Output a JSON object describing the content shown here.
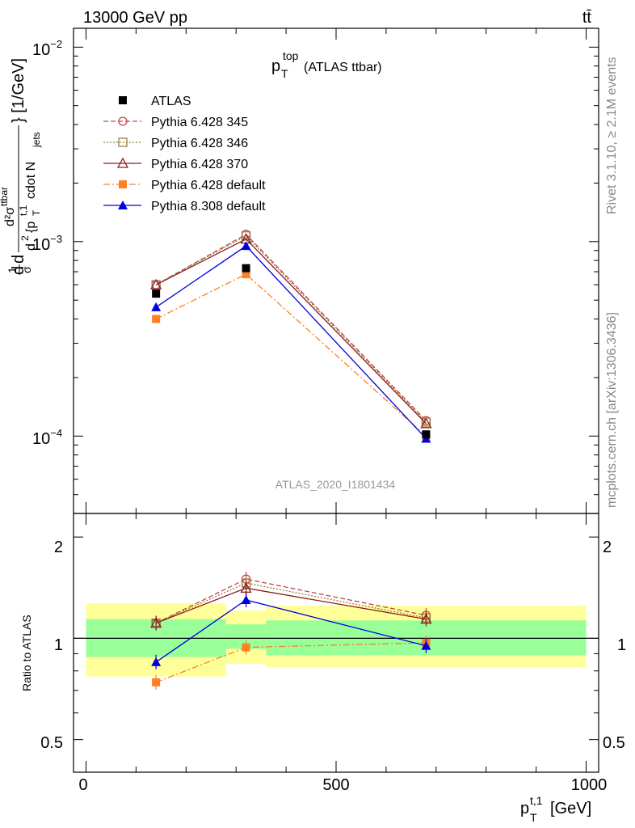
{
  "header": {
    "left": "13000 GeV pp",
    "right": "tt̄"
  },
  "side_labels": {
    "rivet": "Rivet 3.1.10, ≥ 2.1M events",
    "site": "mcplots.cern.ch [arXiv:1306.3436]"
  },
  "main_plot": {
    "title_main": "p",
    "title_sub": "T",
    "title_sup": "top",
    "title_suffix": "(ATLAS ttbar)",
    "analysis_tag": "ATLAS_2020_I1801434",
    "ylabel": "d1dσd²σᵗᵗ/d²{p_T^{t,1} cdot N_jets} [1/GeV]",
    "ylabel_parts": {
      "p1": "d",
      "p2": "1",
      "p3": "σ",
      "p4": "d",
      "p5": "d²σ",
      "p6": "ttbar",
      "p7": "d",
      "p8": "2",
      "p9": "{p",
      "p10": "T",
      "p11": "t,1",
      "p12": "cdot N",
      "p13": "jets",
      "p14": "} [1/GeV]"
    },
    "y_ticks": {
      "t1e2": {
        "base": "10",
        "exp": "−2"
      },
      "t1e3": {
        "base": "10",
        "exp": "−3"
      },
      "t1e4": {
        "base": "10",
        "exp": "−4"
      }
    }
  },
  "ratio_plot": {
    "ylabel": "Ratio to ATLAS",
    "y_ticks": [
      "2",
      "1",
      "0.5"
    ]
  },
  "x_axis": {
    "ticks": [
      "0",
      "500",
      "1000"
    ],
    "label_main": "p",
    "label_sub": "T",
    "label_sup": "t,1",
    "label_unit": "[GeV]"
  },
  "legend": [
    {
      "name": "ATLAS",
      "color": "#000000",
      "marker": "square-filled",
      "dash": "none"
    },
    {
      "name": "Pythia 6.428 345",
      "color": "#c0464e",
      "marker": "circle-open",
      "dash": "6,3"
    },
    {
      "name": "Pythia 6.428 346",
      "color": "#9a7b3d",
      "marker": "square-open",
      "dash": "2,2"
    },
    {
      "name": "Pythia 6.428 370",
      "color": "#8b1c1c",
      "marker": "triangle-open",
      "dash": "none"
    },
    {
      "name": "Pythia 6.428 default",
      "color": "#ff7f24",
      "marker": "square-filled",
      "dash": "8,3,2,3"
    },
    {
      "name": "Pythia 8.308 default",
      "color": "#0000dd",
      "marker": "triangle-filled",
      "dash": "none"
    }
  ],
  "chart_data": {
    "type": "line",
    "x": [
      140,
      320,
      680
    ],
    "x_bins": [
      [
        0,
        280
      ],
      [
        280,
        360
      ],
      [
        360,
        1000
      ]
    ],
    "xlim": [
      -25,
      1025
    ],
    "main_ylim": [
      4e-05,
      0.0125
    ],
    "main_yscale": "log",
    "ratio_ylim": [
      0.4,
      2.35
    ],
    "ratio_yscale": "log",
    "data": {
      "name": "ATLAS",
      "values": [
        0.00054,
        0.00073,
        0.000102
      ]
    },
    "data_uncertainty_ratio": {
      "inner": [
        [
          0.88,
          1.14
        ],
        [
          0.93,
          1.1
        ],
        [
          0.89,
          1.13
        ]
      ],
      "outer": [
        [
          0.77,
          1.27
        ],
        [
          0.84,
          1.21
        ],
        [
          0.82,
          1.25
        ]
      ]
    },
    "series": [
      {
        "name": "Pythia 6.428 345",
        "values": [
          0.0006,
          0.00109,
          0.00012
        ],
        "ratio": [
          1.11,
          1.5,
          1.17
        ]
      },
      {
        "name": "Pythia 6.428 346",
        "values": [
          0.0006,
          0.00107,
          0.000118
        ],
        "ratio": [
          1.11,
          1.46,
          1.15
        ]
      },
      {
        "name": "Pythia 6.428 370",
        "values": [
          0.0006,
          0.00103,
          0.000116
        ],
        "ratio": [
          1.11,
          1.41,
          1.14
        ]
      },
      {
        "name": "Pythia 6.428 default",
        "values": [
          0.0004,
          0.00068,
          0.0001
        ],
        "ratio": [
          0.74,
          0.94,
          0.97
        ]
      },
      {
        "name": "Pythia 8.308 default",
        "values": [
          0.00046,
          0.00095,
          9.7e-05
        ],
        "ratio": [
          0.85,
          1.3,
          0.95
        ]
      }
    ]
  }
}
